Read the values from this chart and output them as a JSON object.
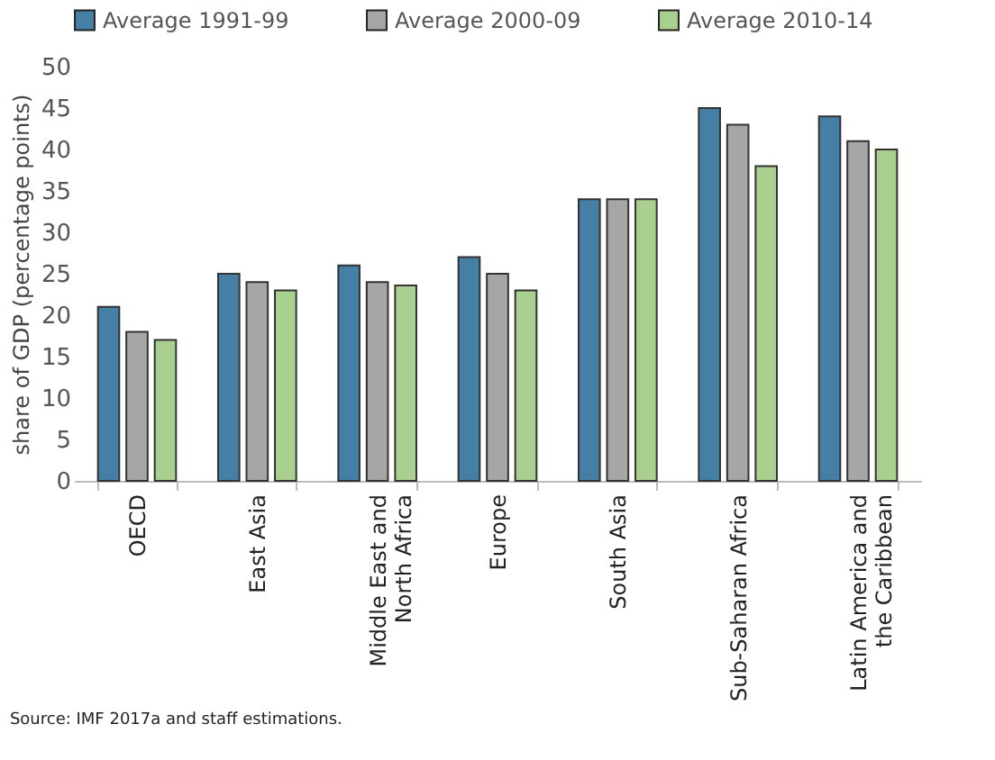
{
  "chart_data": {
    "type": "bar",
    "categories": [
      "OECD",
      "East Asia",
      "Middle East and\nNorth Africa",
      "Europe",
      "South Asia",
      "Sub-Saharan Africa",
      "Latin America and\nthe Caribbean"
    ],
    "series": [
      {
        "name": "Average 1991-99",
        "color": "#457fa5",
        "values": [
          21,
          25,
          26,
          27,
          34,
          45,
          44
        ]
      },
      {
        "name": "Average 2000-09",
        "color": "#a6a6a6",
        "values": [
          18,
          24,
          24,
          25,
          34,
          43,
          41
        ]
      },
      {
        "name": "Average 2010-14",
        "color": "#a9d08e",
        "values": [
          17,
          23,
          23.6,
          23,
          34,
          38,
          40
        ]
      }
    ],
    "ylabel": "share of GDP (percentage points)",
    "ylim": [
      0,
      50
    ],
    "yticks": [
      0,
      5,
      10,
      15,
      20,
      25,
      30,
      35,
      40,
      45,
      50
    ],
    "grid": false,
    "legend": "top",
    "annotations": [
      "Source: IMF 2017a and staff estimations."
    ]
  }
}
